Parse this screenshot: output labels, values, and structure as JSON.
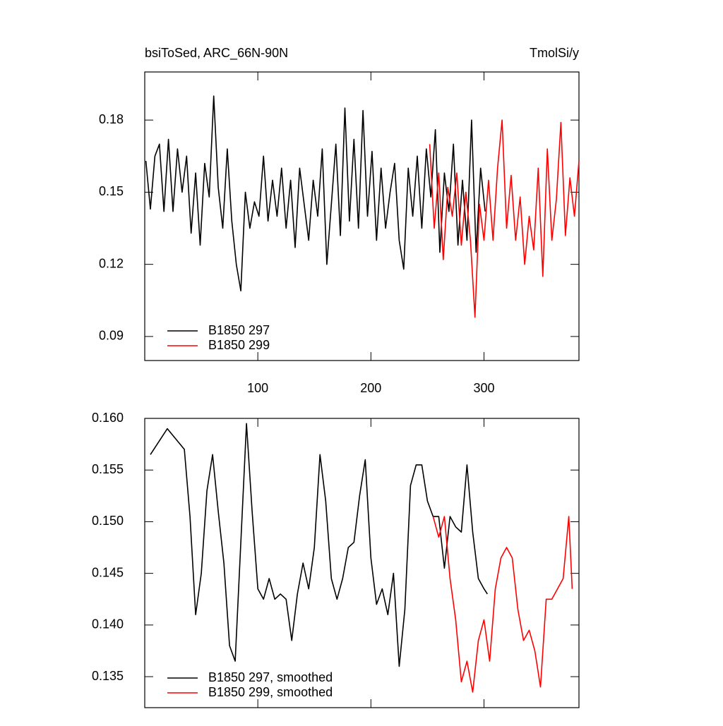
{
  "chart_data": [
    {
      "type": "line",
      "title": "bsiToSed, ARC_66N-90N",
      "units": "TmolSi/y",
      "xlim": [
        0,
        384
      ],
      "xticks": [
        100,
        200,
        300
      ],
      "xtick_labels": true,
      "ylim": [
        0.08,
        0.2
      ],
      "yticks": [
        0.09,
        0.12,
        0.15,
        0.18
      ],
      "legend": "lower left",
      "series": [
        {
          "name": "B1850 297",
          "color": "#000000",
          "x": [
            1,
            5,
            9,
            13,
            17,
            21,
            25,
            29,
            33,
            37,
            41,
            45,
            49,
            53,
            57,
            61,
            65,
            69,
            73,
            77,
            81,
            85,
            89,
            93,
            97,
            101,
            105,
            109,
            113,
            117,
            121,
            125,
            129,
            133,
            137,
            141,
            145,
            149,
            153,
            157,
            161,
            165,
            169,
            173,
            177,
            181,
            185,
            189,
            193,
            197,
            201,
            205,
            209,
            213,
            217,
            221,
            225,
            229,
            233,
            237,
            241,
            245,
            249,
            253,
            257,
            261,
            265,
            269,
            273,
            277,
            281,
            285,
            289,
            293,
            297,
            301
          ],
          "values": [
            0.163,
            0.143,
            0.165,
            0.17,
            0.142,
            0.172,
            0.142,
            0.168,
            0.15,
            0.165,
            0.133,
            0.158,
            0.128,
            0.162,
            0.148,
            0.19,
            0.152,
            0.135,
            0.168,
            0.138,
            0.12,
            0.109,
            0.15,
            0.135,
            0.146,
            0.14,
            0.165,
            0.138,
            0.155,
            0.14,
            0.16,
            0.135,
            0.155,
            0.127,
            0.16,
            0.145,
            0.13,
            0.155,
            0.14,
            0.168,
            0.12,
            0.145,
            0.17,
            0.132,
            0.185,
            0.138,
            0.172,
            0.135,
            0.184,
            0.14,
            0.167,
            0.13,
            0.16,
            0.135,
            0.15,
            0.162,
            0.13,
            0.118,
            0.16,
            0.14,
            0.165,
            0.135,
            0.168,
            0.148,
            0.176,
            0.125,
            0.158,
            0.142,
            0.17,
            0.128,
            0.155,
            0.13,
            0.18,
            0.125,
            0.16,
            0.142
          ]
        },
        {
          "name": "B1850 299",
          "color": "#ff0000",
          "x": [
            252,
            256,
            260,
            264,
            268,
            272,
            276,
            280,
            284,
            288,
            292,
            296,
            300,
            304,
            308,
            312,
            316,
            320,
            324,
            328,
            332,
            336,
            340,
            344,
            348,
            352,
            356,
            360,
            364,
            368,
            372,
            376,
            380,
            384
          ],
          "values": [
            0.17,
            0.135,
            0.158,
            0.122,
            0.152,
            0.14,
            0.158,
            0.128,
            0.15,
            0.13,
            0.098,
            0.145,
            0.13,
            0.155,
            0.13,
            0.16,
            0.18,
            0.135,
            0.157,
            0.13,
            0.148,
            0.12,
            0.14,
            0.126,
            0.16,
            0.115,
            0.168,
            0.13,
            0.147,
            0.179,
            0.132,
            0.156,
            0.14,
            0.163
          ]
        }
      ]
    },
    {
      "type": "line",
      "xlim": [
        0,
        384
      ],
      "xticks": [
        100,
        200,
        300
      ],
      "xtick_labels": false,
      "ylim": [
        0.132,
        0.16
      ],
      "yticks": [
        {
          "value": 0.135,
          "label": "0.135"
        },
        {
          "value": 0.14,
          "label": "0.140"
        },
        {
          "value": 0.145,
          "label": "0.145"
        },
        {
          "value": 0.15,
          "label": "0.150"
        },
        {
          "value": 0.155,
          "label": "0.155"
        },
        {
          "value": 0.16,
          "label": "0.160"
        }
      ],
      "legend": "lower left",
      "series": [
        {
          "name": "B1850 297, smoothed",
          "color": "#000000",
          "x": [
            5,
            20,
            35,
            40,
            45,
            50,
            55,
            60,
            65,
            70,
            75,
            80,
            85,
            90,
            95,
            100,
            105,
            110,
            115,
            120,
            125,
            130,
            135,
            140,
            145,
            150,
            155,
            160,
            165,
            170,
            175,
            180,
            185,
            190,
            195,
            200,
            205,
            210,
            215,
            220,
            225,
            230,
            235,
            240,
            245,
            250,
            255,
            260,
            265,
            270,
            275,
            280,
            285,
            290,
            295,
            300,
            303
          ],
          "values": [
            0.1565,
            0.159,
            0.157,
            0.1505,
            0.141,
            0.145,
            0.153,
            0.1565,
            0.151,
            0.146,
            0.138,
            0.1365,
            0.148,
            0.1595,
            0.151,
            0.1435,
            0.1425,
            0.1445,
            0.1425,
            0.143,
            0.1425,
            0.1385,
            0.143,
            0.146,
            0.1435,
            0.1475,
            0.1565,
            0.152,
            0.1445,
            0.1425,
            0.1445,
            0.1475,
            0.148,
            0.1525,
            0.156,
            0.1465,
            0.142,
            0.1435,
            0.141,
            0.145,
            0.136,
            0.1415,
            0.1535,
            0.1555,
            0.1555,
            0.152,
            0.1505,
            0.1505,
            0.1455,
            0.1505,
            0.1495,
            0.149,
            0.1555,
            0.149,
            0.1445,
            0.1435,
            0.143
          ]
        },
        {
          "name": "B1850 299, smoothed",
          "color": "#ff0000",
          "x": [
            255,
            260,
            265,
            270,
            275,
            280,
            285,
            290,
            295,
            300,
            305,
            310,
            315,
            320,
            325,
            330,
            335,
            340,
            345,
            350,
            355,
            360,
            365,
            370,
            375,
            378
          ],
          "values": [
            0.1505,
            0.1485,
            0.1505,
            0.1445,
            0.1405,
            0.1345,
            0.1365,
            0.1335,
            0.1385,
            0.1405,
            0.1365,
            0.1435,
            0.1465,
            0.1475,
            0.1465,
            0.1415,
            0.1385,
            0.1395,
            0.1375,
            0.134,
            0.1425,
            0.1425,
            0.1435,
            0.1445,
            0.1505,
            0.1435
          ]
        }
      ]
    }
  ]
}
